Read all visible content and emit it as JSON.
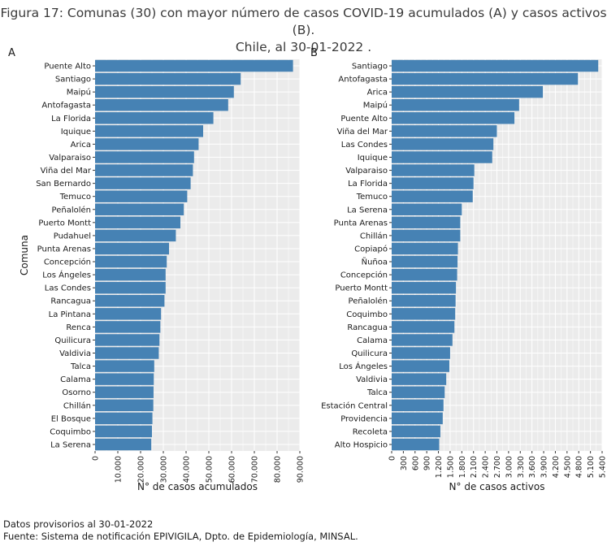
{
  "figure": {
    "title_line1": "Figura 17: Comunas (30) con mayor número de casos COVID-19 acumulados (A) y casos activos (B).",
    "title_line2": "Chile, al 30-01-2022 ."
  },
  "footer": {
    "line1": "Datos provisorios al 30-01-2022",
    "line2": "Fuente: Sistema de notificación EPIVIGILA, Dpto. de Epidemiología, MINSAL."
  },
  "colors": {
    "bar": "#4682B4",
    "panel_bg": "#EBEBEB",
    "grid": "#FFFFFF"
  },
  "chart_data": [
    {
      "type": "bar",
      "orientation": "horizontal",
      "panel": "A",
      "xlabel": "N° de casos acumulados",
      "ylabel": "Comuna",
      "xlim": [
        0,
        90000
      ],
      "xticks": [
        0,
        10000,
        20000,
        30000,
        40000,
        50000,
        60000,
        70000,
        80000,
        90000
      ],
      "xtick_labels": [
        "0",
        "10.000",
        "20.000",
        "30.000",
        "40.000",
        "50.000",
        "60.000",
        "70.000",
        "80.000",
        "90.000"
      ],
      "grid": true,
      "categories": [
        "Puente Alto",
        "Santiago",
        "Maipú",
        "Antofagasta",
        "La Florida",
        "Iquique",
        "Arica",
        "Valparaiso",
        "Viña del Mar",
        "San Bernardo",
        "Temuco",
        "Peñalolén",
        "Puerto Montt",
        "Pudahuel",
        "Punta Arenas",
        "Concepción",
        "Los Ángeles",
        "Las Condes",
        "Rancagua",
        "La Pintana",
        "Renca",
        "Quilicura",
        "Valdivia",
        "Talca",
        "Calama",
        "Osorno",
        "Chillán",
        "El Bosque",
        "Coquimbo",
        "La Serena"
      ],
      "values": [
        87000,
        64000,
        61000,
        58500,
        52000,
        47500,
        45500,
        43500,
        43000,
        42000,
        40500,
        39000,
        37500,
        35500,
        32500,
        31500,
        31000,
        31000,
        30500,
        29000,
        28700,
        28300,
        28000,
        26000,
        25800,
        25700,
        25600,
        25200,
        25000,
        24700
      ]
    },
    {
      "type": "bar",
      "orientation": "horizontal",
      "panel": "B",
      "xlabel": "N° de casos activos",
      "xlim": [
        0,
        5400
      ],
      "xticks": [
        0,
        300,
        600,
        900,
        1200,
        1500,
        1800,
        2100,
        2400,
        2700,
        3000,
        3300,
        3600,
        3900,
        4200,
        4500,
        4800,
        5100,
        5400
      ],
      "xtick_labels": [
        "0",
        "300",
        "600",
        "900",
        "1.200",
        "1.500",
        "1.800",
        "2.100",
        "2.400",
        "2.700",
        "3.000",
        "3.300",
        "3.600",
        "3.900",
        "4.200",
        "4.500",
        "4.800",
        "5.100",
        "5.400"
      ],
      "grid": true,
      "categories": [
        "Santiago",
        "Antofagasta",
        "Arica",
        "Maipú",
        "Puente Alto",
        "Viña del Mar",
        "Las Condes",
        "Iquique",
        "Valparaiso",
        "La Florida",
        "Temuco",
        "La Serena",
        "Punta Arenas",
        "Chillán",
        "Copiapó",
        "Ñuñoa",
        "Concepción",
        "Puerto Montt",
        "Peñalolén",
        "Coquimbo",
        "Rancagua",
        "Calama",
        "Quilicura",
        "Los Ángeles",
        "Valdivia",
        "Talca",
        "Estación Central",
        "Providencia",
        "Recoleta",
        "Alto Hospicio"
      ],
      "values": [
        5300,
        4780,
        3880,
        3270,
        3150,
        2700,
        2610,
        2580,
        2120,
        2100,
        2080,
        1800,
        1760,
        1760,
        1700,
        1690,
        1680,
        1650,
        1640,
        1630,
        1610,
        1560,
        1500,
        1480,
        1400,
        1360,
        1330,
        1310,
        1250,
        1220
      ]
    }
  ]
}
